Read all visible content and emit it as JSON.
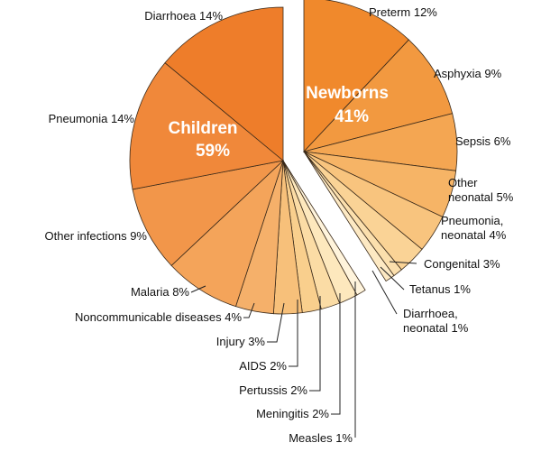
{
  "chart_data": {
    "type": "pie",
    "title": "",
    "groups": [
      {
        "name": "Children",
        "value_label": "59%",
        "value": 59
      },
      {
        "name": "Newborns",
        "value_label": "41%",
        "value": 41
      }
    ],
    "slices": [
      {
        "label": "Preterm 12%",
        "value": 12,
        "group": "Newborns",
        "color": "#f0892c"
      },
      {
        "label": "Asphyxia 9%",
        "value": 9,
        "group": "Newborns",
        "color": "#f29940"
      },
      {
        "label": "Sepsis 6%",
        "value": 6,
        "group": "Newborns",
        "color": "#f4a652"
      },
      {
        "label": "Other neonatal 5%",
        "value": 5,
        "group": "Newborns",
        "color": "#f6b466"
      },
      {
        "label": "Pneumonia, neonatal 4%",
        "value": 4,
        "group": "Newborns",
        "color": "#f8c47e"
      },
      {
        "label": "Congenital 3%",
        "value": 3,
        "group": "Newborns",
        "color": "#fad396"
      },
      {
        "label": "Tetanus 1%",
        "value": 1,
        "group": "Newborns",
        "color": "#fbdfad"
      },
      {
        "label": "Diarrhoea, neonatal 1%",
        "value": 1,
        "group": "Newborns",
        "color": "#fde9c3"
      },
      {
        "label": "Measles 1%",
        "value": 1,
        "group": "Children",
        "color": "#fff4dc"
      },
      {
        "label": "Meningitis 2%",
        "value": 2,
        "group": "Children",
        "color": "#fde8bd"
      },
      {
        "label": "Pertussis 2%",
        "value": 2,
        "group": "Children",
        "color": "#fbdca5"
      },
      {
        "label": "AIDS 2%",
        "value": 2,
        "group": "Children",
        "color": "#f9cf8d"
      },
      {
        "label": "Injury 3%",
        "value": 3,
        "group": "Children",
        "color": "#f7c07a"
      },
      {
        "label": "Noncommunicable diseases 4%",
        "value": 4,
        "group": "Children",
        "color": "#f5b06a"
      },
      {
        "label": "Malaria 8%",
        "value": 8,
        "group": "Children",
        "color": "#f4a45a"
      },
      {
        "label": "Other infections 9%",
        "value": 9,
        "group": "Children",
        "color": "#f2964a"
      },
      {
        "label": "Pneumonia 14%",
        "value": 14,
        "group": "Children",
        "color": "#f0883a"
      },
      {
        "label": "Diarrhoea 14%",
        "value": 14,
        "group": "Children",
        "color": "#ee7d2a"
      }
    ]
  }
}
